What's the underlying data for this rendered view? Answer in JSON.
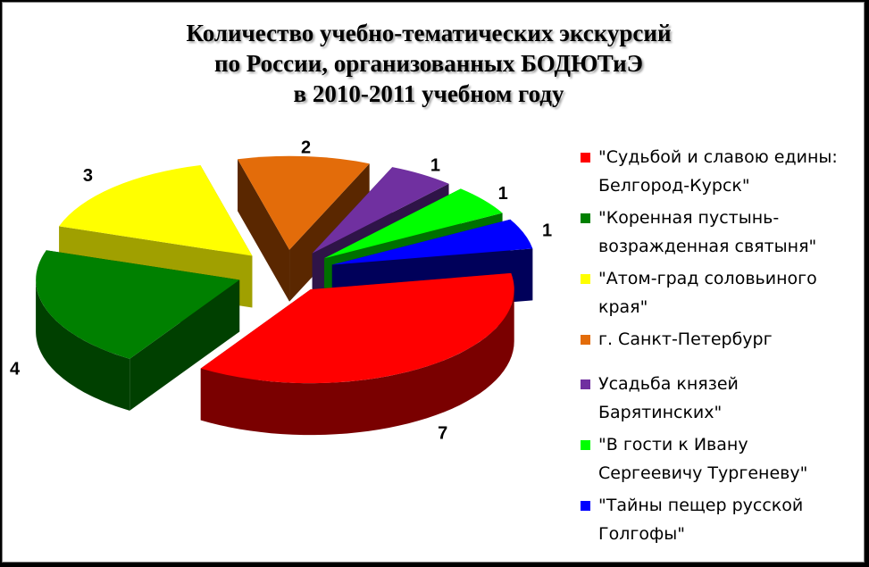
{
  "title_lines": [
    "Количество учебно-тематических экскурсий",
    "по России, организованных БОДЮТиЭ",
    "в 2010-2011 учебном году"
  ],
  "chart_data": {
    "type": "pie",
    "style": "3d-exploded",
    "title": "Количество учебно-тематических экскурсий по России, организованных БОДЮТиЭ в 2010-2011 учебном году",
    "legend_position": "right",
    "slices": [
      {
        "label": "\"Судьбой и славою едины: Белгород-Курск\"",
        "value": 7,
        "color": "#ff0000",
        "side_color": "#7a0000"
      },
      {
        "label": "\"Коренная пустынь- возражденная святыня\"",
        "value": 4,
        "color": "#008000",
        "side_color": "#004000"
      },
      {
        "label": "\"Атом-град соловьиного края\"",
        "value": 3,
        "color": "#ffff00",
        "side_color": "#a0a000"
      },
      {
        "label": "г. Санкт-Петербург",
        "value": 2,
        "color": "#e36c0a",
        "side_color": "#5a2700"
      },
      {
        "label": "Усадьба князей Барятинских\"",
        "value": 1,
        "color": "#7030a0",
        "side_color": "#2f1448"
      },
      {
        "label": "\"В гости к Ивану Сергеевичу Тургеневу\"",
        "value": 1,
        "color": "#00ff00",
        "side_color": "#007000"
      },
      {
        "label": "\"Тайны пещер русской Голгофы\"",
        "value": 1,
        "color": "#0000ff",
        "side_color": "#00005a"
      }
    ]
  }
}
